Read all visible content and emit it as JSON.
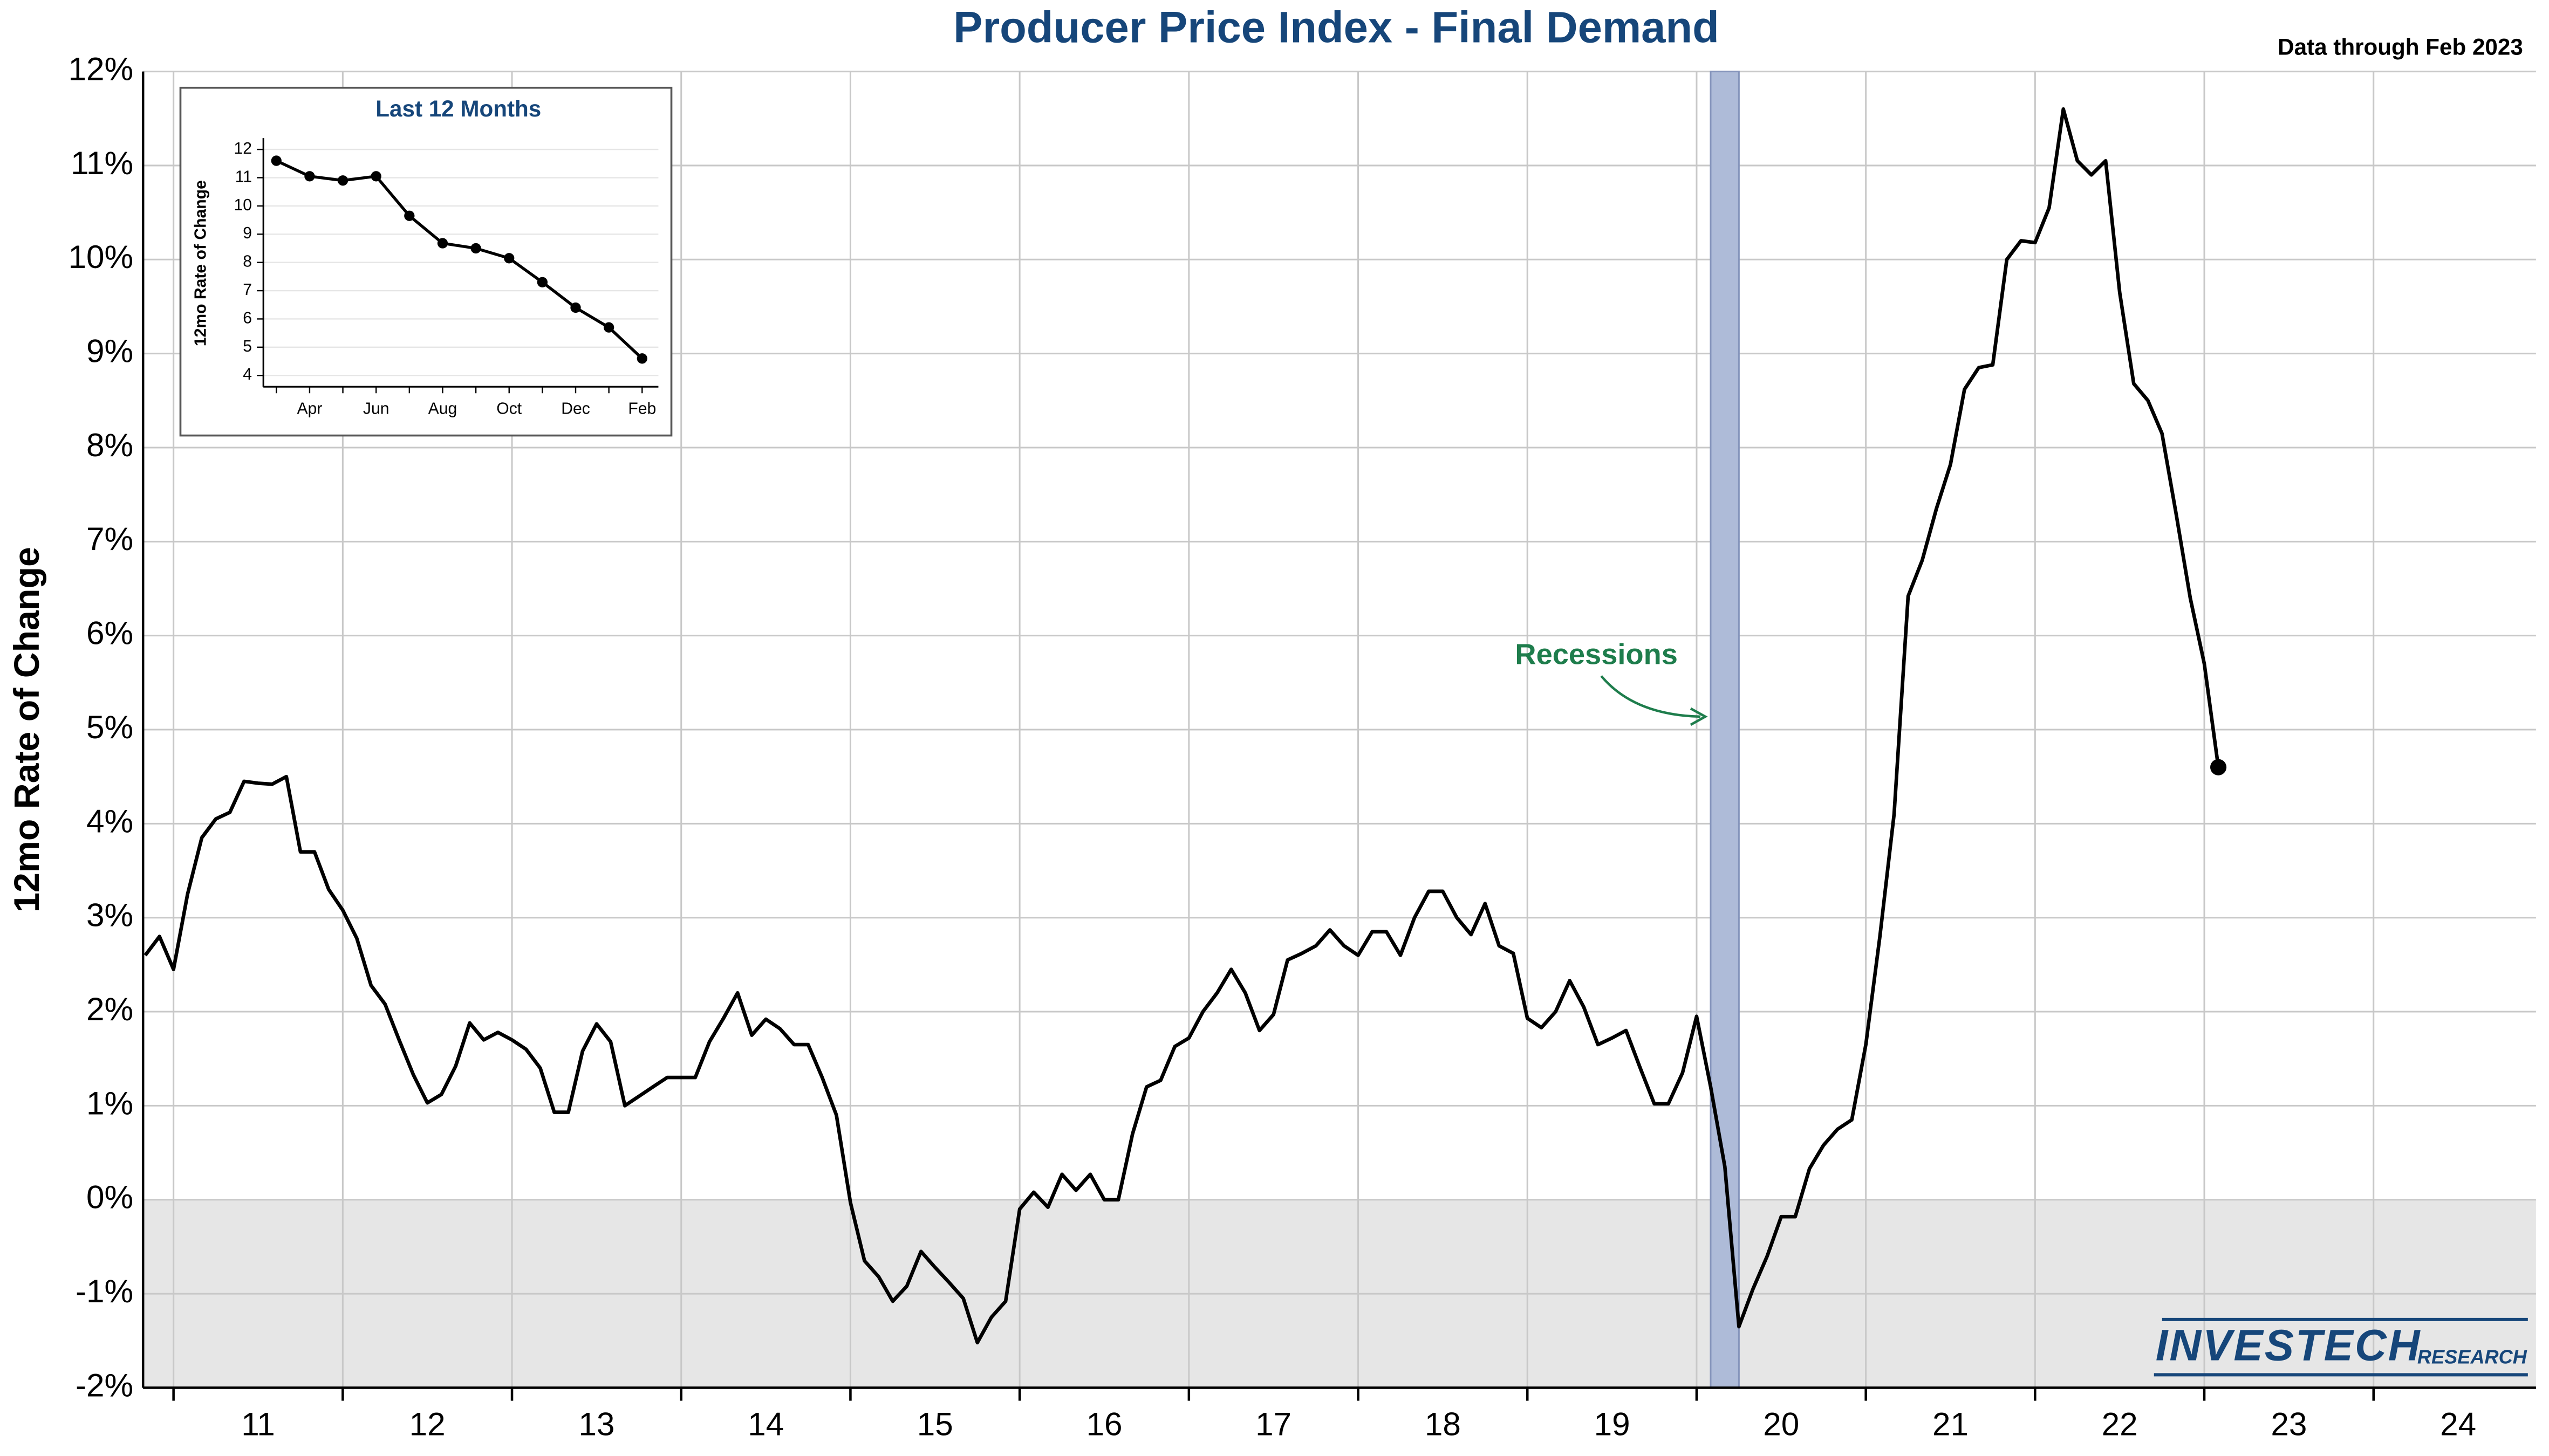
{
  "chart_data": [
    {
      "type": "line",
      "title": "Producer Price Index - Final Demand",
      "subtitle": "Data through Feb 2023",
      "y_label": "12mo Rate of Change",
      "x": [
        10.833,
        10.917,
        11,
        11.083,
        11.167,
        11.25,
        11.333,
        11.417,
        11.5,
        11.583,
        11.667,
        11.75,
        11.833,
        11.917,
        12,
        12.083,
        12.167,
        12.25,
        12.333,
        12.417,
        12.5,
        12.583,
        12.667,
        12.75,
        12.833,
        12.917,
        13,
        13.083,
        13.167,
        13.25,
        13.333,
        13.417,
        13.5,
        13.583,
        13.667,
        13.75,
        13.833,
        13.917,
        14,
        14.083,
        14.167,
        14.25,
        14.333,
        14.417,
        14.5,
        14.583,
        14.667,
        14.75,
        14.833,
        14.917,
        15,
        15.083,
        15.167,
        15.25,
        15.333,
        15.417,
        15.5,
        15.583,
        15.667,
        15.75,
        15.833,
        15.917,
        16,
        16.083,
        16.167,
        16.25,
        16.333,
        16.417,
        16.5,
        16.583,
        16.667,
        16.75,
        16.833,
        16.917,
        17,
        17.083,
        17.167,
        17.25,
        17.333,
        17.417,
        17.5,
        17.583,
        17.667,
        17.75,
        17.833,
        17.917,
        18,
        18.083,
        18.167,
        18.25,
        18.333,
        18.417,
        18.5,
        18.583,
        18.667,
        18.75,
        18.833,
        18.917,
        19,
        19.083,
        19.167,
        19.25,
        19.333,
        19.417,
        19.5,
        19.583,
        19.667,
        19.75,
        19.833,
        19.917,
        20,
        20.083,
        20.167,
        20.25,
        20.333,
        20.417,
        20.5,
        20.583,
        20.667,
        20.75,
        20.833,
        20.917,
        21,
        21.083,
        21.167,
        21.25,
        21.333,
        21.417,
        21.5,
        21.583,
        21.667,
        21.75,
        21.833,
        21.917,
        22,
        22.083,
        22.167,
        22.25,
        22.333,
        22.417,
        22.5,
        22.583,
        22.667,
        22.75,
        22.833,
        22.917,
        23,
        23.083
      ],
      "values": [
        2.6,
        2.8,
        2.45,
        3.25,
        3.85,
        4.05,
        4.12,
        4.45,
        4.43,
        4.42,
        4.5,
        3.7,
        3.7,
        3.3,
        3.08,
        2.78,
        2.28,
        2.08,
        1.7,
        1.33,
        1.03,
        1.12,
        1.42,
        1.88,
        1.7,
        1.78,
        1.7,
        1.6,
        1.4,
        0.93,
        0.93,
        1.58,
        1.87,
        1.68,
        1.0,
        1.1,
        1.2,
        1.3,
        1.3,
        1.3,
        1.68,
        1.93,
        2.2,
        1.75,
        1.92,
        1.82,
        1.65,
        1.65,
        1.3,
        0.9,
        -0.03,
        -0.65,
        -0.82,
        -1.08,
        -0.92,
        -0.55,
        -0.72,
        -0.88,
        -1.05,
        -1.52,
        -1.25,
        -1.08,
        -0.1,
        0.08,
        -0.08,
        0.27,
        0.1,
        0.27,
        0,
        0,
        0.7,
        1.2,
        1.27,
        1.63,
        1.72,
        2.0,
        2.2,
        2.45,
        2.2,
        1.8,
        1.97,
        2.55,
        2.62,
        2.7,
        2.87,
        2.7,
        2.6,
        2.85,
        2.85,
        2.6,
        3.0,
        3.28,
        3.28,
        3.0,
        2.82,
        3.15,
        2.7,
        2.62,
        1.93,
        1.83,
        2.0,
        2.33,
        2.05,
        1.65,
        1.72,
        1.8,
        1.4,
        1.02,
        1.02,
        1.35,
        1.95,
        1.2,
        0.35,
        -1.35,
        -0.95,
        -0.6,
        -0.18,
        -0.18,
        0.33,
        0.58,
        0.75,
        0.85,
        1.65,
        2.8,
        4.1,
        6.42,
        6.8,
        7.35,
        7.82,
        8.62,
        8.85,
        8.88,
        10.0,
        10.2,
        10.18,
        10.55,
        11.6,
        11.05,
        10.9,
        11.05,
        9.65,
        8.68,
        8.5,
        8.15,
        7.3,
        6.4,
        5.7,
        4.6
      ],
      "color": "#000000",
      "xlim": [
        10.82,
        24.96
      ],
      "xticks": [
        11,
        12,
        13,
        14,
        15,
        16,
        17,
        18,
        19,
        20,
        21,
        22,
        23,
        24
      ],
      "ylim": [
        -2,
        12
      ],
      "yticks": [
        {
          "value": -2,
          "label": "-2%"
        },
        {
          "value": -1,
          "label": "-1%"
        },
        {
          "value": 0,
          "label": "0%"
        },
        {
          "value": 1,
          "label": "1%"
        },
        {
          "value": 2,
          "label": "2%"
        },
        {
          "value": 3,
          "label": "3%"
        },
        {
          "value": 4,
          "label": "4%"
        },
        {
          "value": 5,
          "label": "5%"
        },
        {
          "value": 6,
          "label": "6%"
        },
        {
          "value": 7,
          "label": "7%"
        },
        {
          "value": 8,
          "label": "8%"
        },
        {
          "value": 9,
          "label": "9%"
        },
        {
          "value": 10,
          "label": "10%"
        },
        {
          "value": 11,
          "label": "11%"
        },
        {
          "value": 12,
          "label": "12%"
        }
      ],
      "grid": true,
      "negative_shading": true,
      "end_marker": true,
      "recessions": [
        [
          20.083,
          20.25
        ]
      ],
      "recession_label": "Recessions",
      "logo": "INVESTECH",
      "logo_sub": "RESEARCH"
    },
    {
      "type": "line",
      "title": "Last 12 Months",
      "y_label": "12mo Rate of Change",
      "categories": [
        null,
        "Apr",
        null,
        "Jun",
        null,
        "Aug",
        null,
        "Oct",
        null,
        "Dec",
        null,
        "Feb"
      ],
      "values": [
        11.6,
        11.05,
        10.9,
        11.05,
        9.65,
        8.68,
        8.5,
        8.15,
        7.3,
        6.4,
        5.7,
        4.6
      ],
      "color": "#000000",
      "ylim": [
        3.6,
        12.4
      ],
      "yticks": [
        4,
        5,
        6,
        7,
        8,
        9,
        10,
        11,
        12
      ],
      "grid": true,
      "markers": true
    }
  ]
}
